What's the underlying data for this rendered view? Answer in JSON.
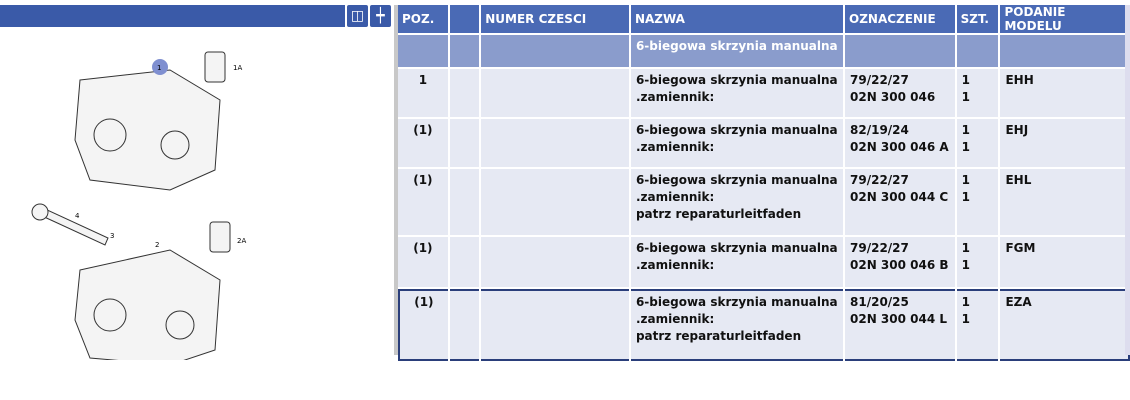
{
  "toolbar": {
    "split_icon": "split-view-icon",
    "fit_icon": "fit-arrow-icon"
  },
  "diagram": {
    "callouts": [
      "1",
      "1A",
      "2",
      "2A",
      "3",
      "4"
    ],
    "highlight_color": "#7f8fd0"
  },
  "table": {
    "headers": [
      "POZ.",
      "",
      "NUMER CZESCI",
      "NAZWA",
      "OZNACZENIE",
      "SZT.",
      "PODANIE MODELU"
    ],
    "group": {
      "nazwa": "6-biegowa skrzynia manualna"
    },
    "rows": [
      {
        "poz": "1",
        "numer": "",
        "nazwa": [
          "6-biegowa skrzynia manualna",
          ".zamiennik:"
        ],
        "oznaczenie": [
          "79/22/27",
          "02N 300 046"
        ],
        "szt": [
          "1",
          "1"
        ],
        "model": "EHH"
      },
      {
        "poz": "(1)",
        "numer": "",
        "nazwa": [
          "6-biegowa skrzynia manualna",
          ".zamiennik:"
        ],
        "oznaczenie": [
          "82/19/24",
          "02N 300 046 A"
        ],
        "szt": [
          "1",
          "1"
        ],
        "model": "EHJ"
      },
      {
        "poz": "(1)",
        "numer": "",
        "nazwa": [
          "6-biegowa skrzynia manualna",
          ".zamiennik:",
          "patrz reparaturleitfaden"
        ],
        "oznaczenie": [
          "79/22/27",
          "02N 300 044 C"
        ],
        "szt": [
          "1",
          "1"
        ],
        "model": "EHL"
      },
      {
        "poz": "(1)",
        "numer": "",
        "nazwa": [
          "6-biegowa skrzynia manualna",
          ".zamiennik:"
        ],
        "oznaczenie": [
          "79/22/27",
          "02N 300 046 B"
        ],
        "szt": [
          "1",
          "1"
        ],
        "model": "FGM"
      },
      {
        "poz": "(1)",
        "numer": "",
        "nazwa": [
          "6-biegowa skrzynia manualna",
          ".zamiennik:",
          "patrz reparaturleitfaden"
        ],
        "oznaczenie": [
          "81/20/25",
          "02N 300 044 L"
        ],
        "szt": [
          "1",
          "1"
        ],
        "model": "EZA",
        "selected": true
      }
    ]
  }
}
